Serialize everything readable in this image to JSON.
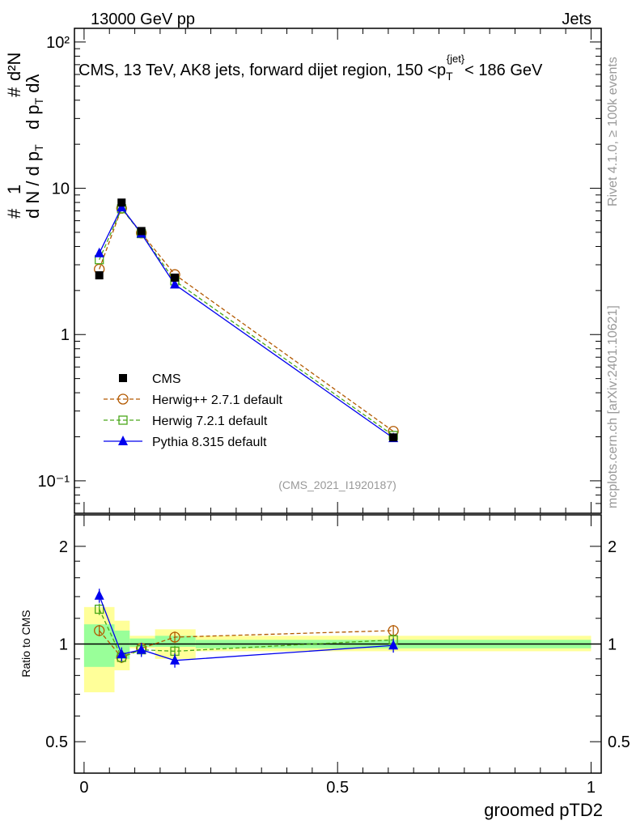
{
  "header": {
    "left": "13000 GeV pp",
    "right": "Jets"
  },
  "side_text": {
    "rivet": "Rivet 4.1.0, ≥ 100k events",
    "mcplots": "mcplots.cern.ch [arXiv:2401.10621]"
  },
  "chart_data": [
    {
      "type": "line",
      "title": "CMS, 13 TeV, AK8 jets, forward dijet region, 150 <p_T^{jet}< 186 GeV",
      "ylabel": "1/dN/dp_T  d²N/dp_T dλ",
      "yscale": "log",
      "ylim": [
        0.06,
        124
      ],
      "xlim": [
        -0.019,
        1.02
      ],
      "yticks": [
        {
          "v": 0.1,
          "label": "10⁻¹"
        },
        {
          "v": 1,
          "label": "1"
        },
        {
          "v": 10,
          "label": "10"
        },
        {
          "v": 100,
          "label": "10²"
        }
      ],
      "x": [
        0.03,
        0.074,
        0.113,
        0.179,
        0.61
      ],
      "annotation": "(CMS_2021_I1920187)",
      "legend_position": "center-left",
      "series": [
        {
          "name": "CMS",
          "color": "#000000",
          "marker": "square",
          "values": [
            2.54,
            7.98,
            5.1,
            2.45,
            0.198
          ]
        },
        {
          "name": "Herwig++ 2.7.1 default",
          "color": "#b35900",
          "marker": "circle",
          "dash": true,
          "values": [
            2.8,
            7.3,
            4.95,
            2.57,
            0.218
          ]
        },
        {
          "name": "Herwig 7.2.1 default",
          "color": "#4aa71a",
          "marker": "open-square",
          "dash": true,
          "values": [
            3.25,
            7.25,
            4.9,
            2.33,
            0.204
          ]
        },
        {
          "name": "Pythia 8.315 default",
          "color": "#0000ee",
          "marker": "triangle",
          "values": [
            3.6,
            7.4,
            4.9,
            2.2,
            0.196
          ]
        }
      ]
    },
    {
      "type": "line",
      "ylabel": "Ratio to CMS",
      "xlabel": "groomed pTD2",
      "yscale": "log",
      "ylim": [
        0.4,
        2.5
      ],
      "xlim": [
        -0.019,
        1.02
      ],
      "yticks": [
        {
          "v": 0.5,
          "label": "0.5"
        },
        {
          "v": 1,
          "label": "1"
        },
        {
          "v": 2,
          "label": "2"
        }
      ],
      "xticks": [
        {
          "v": 0,
          "label": "0"
        },
        {
          "v": 0.5,
          "label": "0.5"
        },
        {
          "v": 1,
          "label": "1"
        }
      ],
      "bins": [
        [
          0,
          0.06
        ],
        [
          0.06,
          0.09
        ],
        [
          0.09,
          0.14
        ],
        [
          0.14,
          0.22
        ],
        [
          0.22,
          1.0
        ]
      ],
      "band_outer": [
        [
          0.71,
          1.3
        ],
        [
          0.83,
          1.18
        ],
        [
          0.97,
          1.06
        ],
        [
          0.9,
          1.11
        ],
        [
          0.95,
          1.06
        ]
      ],
      "band_inner": [
        [
          0.85,
          1.15
        ],
        [
          0.9,
          1.1
        ],
        [
          0.98,
          1.04
        ],
        [
          0.98,
          1.06
        ],
        [
          0.97,
          1.03
        ]
      ],
      "x": [
        0.03,
        0.074,
        0.113,
        0.179,
        0.61
      ],
      "series": [
        {
          "name": "Herwig++ 2.7.1 default",
          "values": [
            1.1,
            0.91,
            0.97,
            1.05,
            1.1
          ],
          "err": 0.04
        },
        {
          "name": "Herwig 7.2.1 default",
          "values": [
            1.28,
            0.91,
            0.96,
            0.95,
            1.03
          ],
          "err": 0.04
        },
        {
          "name": "Pythia 8.315 default",
          "values": [
            1.41,
            0.93,
            0.96,
            0.89,
            0.99
          ],
          "err": 0.05
        }
      ]
    }
  ]
}
